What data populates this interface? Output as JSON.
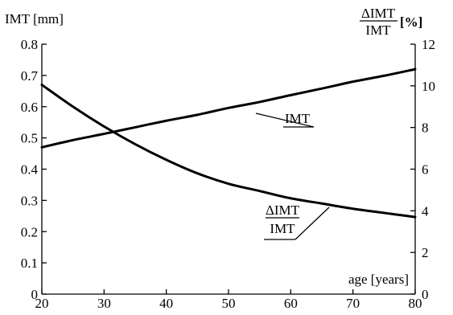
{
  "chart_data": {
    "type": "line",
    "x_axis": {
      "label": "age [years]",
      "range": [
        20,
        80
      ],
      "ticks": [
        20,
        30,
        40,
        50,
        60,
        70,
        80
      ]
    },
    "y_axis_left": {
      "label": "IMT [mm]",
      "range": [
        0,
        0.8
      ],
      "ticks": [
        0,
        0.1,
        0.2,
        0.3,
        0.4,
        0.5,
        0.6,
        0.7,
        0.8
      ],
      "tick_labels": [
        "0",
        "0.1",
        "0.2",
        "0.3",
        "0.4",
        "0.5",
        "0.6",
        "0.7",
        "0.8"
      ]
    },
    "y_axis_right": {
      "label_numerator": "ΔIMT",
      "label_denominator": "IMT",
      "label_unit": "[%]",
      "range": [
        0,
        12
      ],
      "ticks": [
        0,
        2,
        4,
        6,
        8,
        10,
        12
      ],
      "tick_labels": [
        "0",
        "2",
        "4",
        "6",
        "8",
        "10",
        "12"
      ]
    },
    "grid": false,
    "series": [
      {
        "name": "IMT",
        "axis": "left",
        "x": [
          20,
          25,
          30,
          35,
          40,
          45,
          50,
          55,
          60,
          65,
          70,
          75,
          80
        ],
        "y": [
          0.47,
          0.493,
          0.513,
          0.534,
          0.555,
          0.574,
          0.596,
          0.615,
          0.637,
          0.658,
          0.68,
          0.699,
          0.72
        ]
      },
      {
        "name_numerator": "ΔIMT",
        "name_denominator": "IMT",
        "axis": "right",
        "x": [
          20,
          25,
          30,
          35,
          40,
          45,
          50,
          55,
          60,
          65,
          70,
          75,
          80
        ],
        "y": [
          10.05,
          9.0,
          8.05,
          7.2,
          6.45,
          5.8,
          5.3,
          4.95,
          4.6,
          4.35,
          4.1,
          3.9,
          3.7
        ]
      }
    ]
  }
}
